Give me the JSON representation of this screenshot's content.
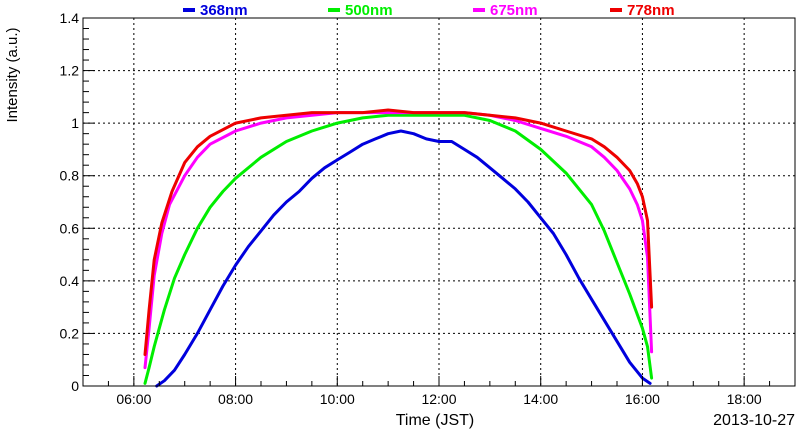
{
  "chart_data": {
    "type": "line",
    "title": "",
    "xlabel": "Time (JST)",
    "ylabel": "Intensity (a.u.)",
    "date_label": "2013-10-27",
    "xlim": [
      5.0,
      19.0
    ],
    "ylim": [
      0,
      1.4
    ],
    "x_ticks": [
      {
        "value": 6,
        "label": "06:00"
      },
      {
        "value": 8,
        "label": "08:00"
      },
      {
        "value": 10,
        "label": "10:00"
      },
      {
        "value": 12,
        "label": "12:00"
      },
      {
        "value": 14,
        "label": "14:00"
      },
      {
        "value": 16,
        "label": "16:00"
      },
      {
        "value": 18,
        "label": "18:00"
      }
    ],
    "y_ticks": [
      {
        "value": 0,
        "label": "0"
      },
      {
        "value": 0.2,
        "label": "0.2"
      },
      {
        "value": 0.4,
        "label": "0.4"
      },
      {
        "value": 0.6,
        "label": "0.6"
      },
      {
        "value": 0.8,
        "label": "0.8"
      },
      {
        "value": 1.0,
        "label": "1"
      },
      {
        "value": 1.2,
        "label": "1.2"
      },
      {
        "value": 1.4,
        "label": "1.4"
      }
    ],
    "grid": true,
    "legend_position": "top",
    "series": [
      {
        "name": "368nm",
        "color": "#0000dd",
        "x": [
          6.45,
          6.6,
          6.8,
          7.0,
          7.25,
          7.5,
          7.75,
          8.0,
          8.25,
          8.5,
          8.75,
          9.0,
          9.25,
          9.5,
          9.75,
          10.0,
          10.25,
          10.5,
          10.75,
          11.0,
          11.25,
          11.5,
          11.75,
          12.0,
          12.25,
          12.5,
          12.75,
          13.0,
          13.25,
          13.5,
          13.75,
          14.0,
          14.25,
          14.5,
          14.75,
          15.0,
          15.25,
          15.5,
          15.75,
          16.0,
          16.15
        ],
        "y": [
          0.0,
          0.02,
          0.06,
          0.12,
          0.2,
          0.29,
          0.38,
          0.46,
          0.53,
          0.59,
          0.65,
          0.7,
          0.74,
          0.79,
          0.83,
          0.86,
          0.89,
          0.92,
          0.94,
          0.96,
          0.97,
          0.96,
          0.94,
          0.93,
          0.93,
          0.9,
          0.87,
          0.83,
          0.79,
          0.75,
          0.7,
          0.64,
          0.58,
          0.5,
          0.41,
          0.33,
          0.25,
          0.17,
          0.09,
          0.03,
          0.01
        ]
      },
      {
        "name": "500nm",
        "color": "#00ee00",
        "x": [
          6.22,
          6.3,
          6.4,
          6.6,
          6.8,
          7.0,
          7.25,
          7.5,
          7.75,
          8.0,
          8.5,
          9.0,
          9.5,
          10.0,
          10.5,
          11.0,
          11.5,
          12.0,
          12.5,
          13.0,
          13.5,
          14.0,
          14.5,
          15.0,
          15.25,
          15.5,
          15.75,
          16.0,
          16.1,
          16.18
        ],
        "y": [
          0.01,
          0.07,
          0.15,
          0.29,
          0.41,
          0.5,
          0.6,
          0.68,
          0.74,
          0.79,
          0.87,
          0.93,
          0.97,
          1.0,
          1.02,
          1.03,
          1.03,
          1.03,
          1.03,
          1.01,
          0.97,
          0.9,
          0.81,
          0.69,
          0.59,
          0.47,
          0.35,
          0.22,
          0.15,
          0.03
        ]
      },
      {
        "name": "675nm",
        "color": "#ff00ff",
        "x": [
          6.22,
          6.3,
          6.4,
          6.55,
          6.7,
          7.0,
          7.25,
          7.5,
          8.0,
          8.5,
          9.0,
          9.5,
          10.0,
          10.5,
          11.0,
          11.5,
          12.0,
          12.5,
          13.0,
          13.5,
          14.0,
          14.5,
          15.0,
          15.25,
          15.5,
          15.75,
          15.9,
          16.0,
          16.1,
          16.18
        ],
        "y": [
          0.07,
          0.22,
          0.42,
          0.58,
          0.69,
          0.8,
          0.87,
          0.92,
          0.97,
          1.0,
          1.02,
          1.03,
          1.04,
          1.04,
          1.04,
          1.04,
          1.04,
          1.04,
          1.03,
          1.01,
          0.98,
          0.95,
          0.91,
          0.87,
          0.82,
          0.75,
          0.69,
          0.63,
          0.49,
          0.13
        ]
      },
      {
        "name": "778nm",
        "color": "#ee0000",
        "x": [
          6.22,
          6.3,
          6.4,
          6.55,
          6.75,
          7.0,
          7.25,
          7.5,
          8.0,
          8.5,
          9.0,
          9.5,
          10.0,
          10.5,
          11.0,
          11.5,
          12.0,
          12.5,
          13.0,
          13.5,
          14.0,
          14.5,
          15.0,
          15.25,
          15.5,
          15.75,
          15.9,
          16.0,
          16.1,
          16.18
        ],
        "y": [
          0.12,
          0.29,
          0.48,
          0.62,
          0.74,
          0.85,
          0.91,
          0.95,
          1.0,
          1.02,
          1.03,
          1.04,
          1.04,
          1.04,
          1.05,
          1.04,
          1.04,
          1.04,
          1.03,
          1.02,
          1.0,
          0.97,
          0.94,
          0.91,
          0.87,
          0.82,
          0.77,
          0.72,
          0.63,
          0.3
        ]
      }
    ]
  }
}
